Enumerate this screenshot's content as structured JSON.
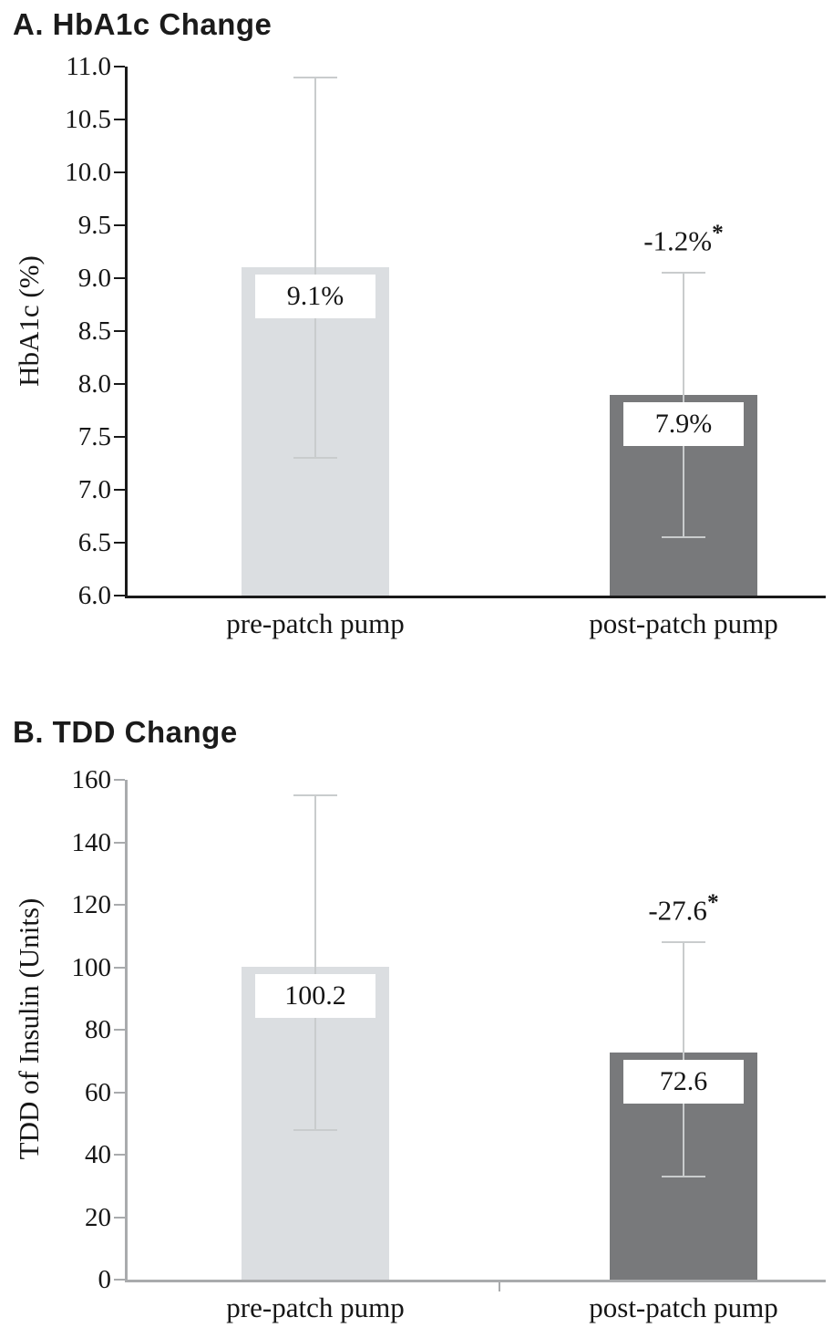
{
  "figure": {
    "background": "#ffffff",
    "panels": [
      "A",
      "B"
    ]
  },
  "chart_data": [
    {
      "type": "bar",
      "panel_label": "A",
      "title": "A. HbA1c Change",
      "ylabel": "HbA1c (%)",
      "xlabel": "",
      "ylim": [
        6.0,
        11.0
      ],
      "ytick_step": 0.5,
      "ytick_labels": [
        "6.0",
        "6.5",
        "7.0",
        "7.5",
        "8.0",
        "8.5",
        "9.0",
        "9.5",
        "10.0",
        "10.5",
        "11.0"
      ],
      "categories": [
        "pre-patch pump",
        "post-patch pump"
      ],
      "values": [
        9.1,
        7.9
      ],
      "bar_value_labels": [
        "9.1%",
        "7.9%"
      ],
      "error_bars": {
        "low": [
          7.3,
          6.55
        ],
        "high": [
          10.9,
          9.05
        ]
      },
      "annotation": {
        "text": "-1.2%",
        "marker": "*",
        "bar_index": 1
      },
      "bar_colors": [
        "#dbdee1",
        "#78797b"
      ],
      "axis_color": "#1a1a1a",
      "error_bar_color": "#c9cccd",
      "grid": false,
      "legend": false
    },
    {
      "type": "bar",
      "panel_label": "B",
      "title": "B. TDD Change",
      "ylabel": "TDD of Insulin (Units)",
      "xlabel": "",
      "ylim": [
        0,
        160
      ],
      "ytick_step": 20,
      "ytick_labels": [
        "0",
        "20",
        "40",
        "60",
        "80",
        "100",
        "120",
        "140",
        "160"
      ],
      "categories": [
        "pre-patch pump",
        "post-patch pump"
      ],
      "values": [
        100.2,
        72.6
      ],
      "bar_value_labels": [
        "100.2",
        "72.6"
      ],
      "error_bars": {
        "low": [
          48,
          33
        ],
        "high": [
          155,
          108
        ]
      },
      "annotation": {
        "text": "-27.6",
        "marker": "*",
        "bar_index": 1
      },
      "bar_colors": [
        "#dbdee1",
        "#78797b"
      ],
      "axis_color": "#a9abad",
      "error_bar_color": "#c9cccd",
      "grid": false,
      "legend": false
    }
  ]
}
